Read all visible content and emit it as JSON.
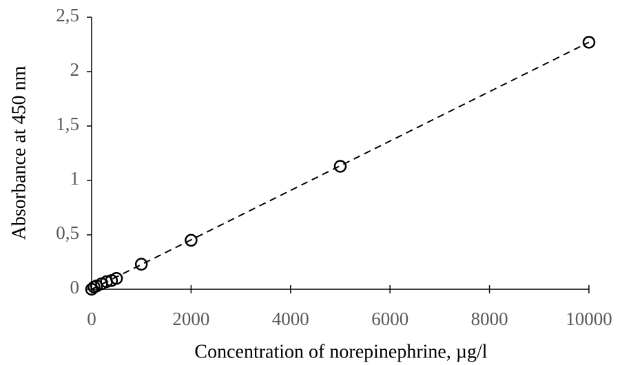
{
  "chart_data": {
    "type": "scatter",
    "x_label": "Concentration  of norepinephrine,  µg/l",
    "y_label": "Absorbance  at 450 nm",
    "x": [
      0,
      50,
      100,
      200,
      300,
      400,
      500,
      1000,
      2000,
      5000,
      10000
    ],
    "values": [
      0,
      0.02,
      0.03,
      0.05,
      0.07,
      0.08,
      0.1,
      0.23,
      0.45,
      1.13,
      2.27
    ],
    "color": "#000000",
    "trendline": {
      "x": [
        0,
        10000
      ],
      "y": [
        0,
        2.27
      ],
      "color": "#000000",
      "dashed": true
    },
    "xlim": [
      0,
      10000
    ],
    "xticks": [
      0,
      2000,
      4000,
      6000,
      8000,
      10000
    ],
    "ylim": [
      0,
      2.5
    ],
    "yticks": [
      0,
      {
        "value": 0.5,
        "label": "0,5"
      },
      1,
      {
        "value": 1.5,
        "label": "1,5"
      },
      2,
      {
        "value": 2.5,
        "label": "2,5"
      }
    ],
    "grid": false
  }
}
